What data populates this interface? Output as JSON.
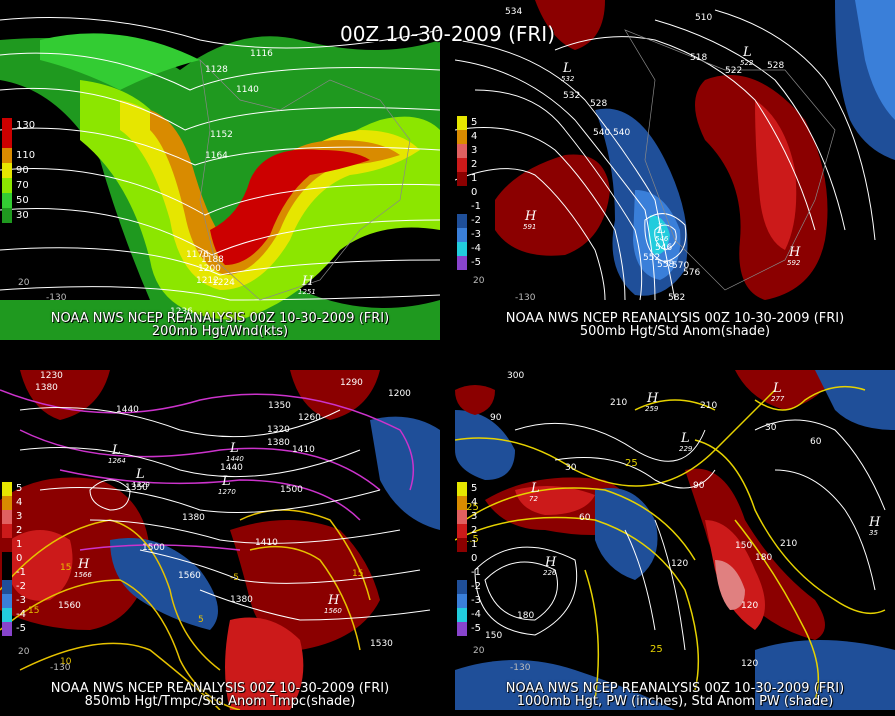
{
  "main_title": "00Z 10-30-2009 (FRI)",
  "panels": [
    {
      "line1": "NOAA NWS NCEP REANALYSIS 00Z 10-30-2009 (FRI)",
      "line2": "200mb Hgt/Wnd(kts)",
      "legend": [
        {
          "label": "130",
          "color": "#cc0000"
        },
        {
          "label": "110",
          "color": "#d98b00"
        },
        {
          "label": "90",
          "color": "#e6e600"
        },
        {
          "label": "70",
          "color": "#8ce600"
        },
        {
          "label": "50",
          "color": "#33cc33"
        },
        {
          "label": "30",
          "color": "#1f991f"
        }
      ],
      "contours": [
        "1116",
        "1128",
        "1140",
        "1152",
        "1164",
        "1176",
        "1188",
        "1200",
        "1212",
        "1224",
        "1236"
      ],
      "highs": [
        {
          "value": "1251"
        }
      ],
      "lons": [
        "-130",
        "20"
      ]
    },
    {
      "line1": "NOAA NWS NCEP REANALYSIS 00Z 10-30-2009 (FRI)",
      "line2": "500mb Hgt/Std Anom(shade)",
      "legend": [
        {
          "label": "5",
          "color": "#e6e600"
        },
        {
          "label": "4",
          "color": "#d98b00"
        },
        {
          "label": "3",
          "color": "#e06060"
        },
        {
          "label": "2",
          "color": "#cc1a1a"
        },
        {
          "label": "1",
          "color": "#8b0000"
        },
        {
          "label": "0",
          "color": "#000000"
        },
        {
          "label": "-1",
          "color": "#000000"
        },
        {
          "label": "-2",
          "color": "#1f4f99"
        },
        {
          "label": "-3",
          "color": "#3a7fd9"
        },
        {
          "label": "-4",
          "color": "#22ccdd"
        },
        {
          "label": "-5",
          "color": "#8844cc"
        }
      ],
      "contours": [
        "534",
        "510",
        "518",
        "522",
        "528",
        "532",
        "528",
        "540",
        "540",
        "552",
        "546",
        "558",
        "570",
        "576",
        "582"
      ],
      "lows": [
        {
          "value": "532"
        },
        {
          "value": "522"
        },
        {
          "value": "546"
        }
      ],
      "highs": [
        {
          "value": "591"
        },
        {
          "value": "592"
        }
      ],
      "lons": [
        "-130",
        "20"
      ]
    },
    {
      "line1": "NOAA NWS NCEP REANALYSIS 00Z 10-30-2009 (FRI)",
      "line2": "850mb Hgt/Tmpc/Std Anom Tmpc(shade)",
      "legend": [
        {
          "label": "5",
          "color": "#e6e600"
        },
        {
          "label": "4",
          "color": "#d98b00"
        },
        {
          "label": "3",
          "color": "#e06060"
        },
        {
          "label": "2",
          "color": "#cc1a1a"
        },
        {
          "label": "1",
          "color": "#8b0000"
        },
        {
          "label": "0",
          "color": "#000000"
        },
        {
          "label": "-1",
          "color": "#000000"
        },
        {
          "label": "-2",
          "color": "#1f4f99"
        },
        {
          "label": "-3",
          "color": "#3a7fd9"
        },
        {
          "label": "-4",
          "color": "#22ccdd"
        },
        {
          "label": "-5",
          "color": "#8844cc"
        }
      ],
      "contours": [
        "1230",
        "1380",
        "1440",
        "1350",
        "1260",
        "1320",
        "1380",
        "1410",
        "1200",
        "1290",
        "1350",
        "1440",
        "1500",
        "1380",
        "1500",
        "1410",
        "1560",
        "1530",
        "1560",
        "1380"
      ],
      "temps": [
        "15",
        "10",
        "5",
        "15",
        "-5",
        "15"
      ],
      "lows": [
        {
          "value": "1264"
        },
        {
          "value": "1270"
        },
        {
          "value": "1440"
        },
        {
          "value": "1329"
        }
      ],
      "highs": [
        {
          "value": "1566"
        },
        {
          "value": "1560"
        }
      ],
      "lons": [
        "-130",
        "20"
      ]
    },
    {
      "line1": "NOAA NWS NCEP REANALYSIS 00Z 10-30-2009 (FRI)",
      "line2": "1000mb Hgt, PW (inches), Std Anom PW (shade)",
      "legend": [
        {
          "label": "5",
          "color": "#e6e600"
        },
        {
          "label": "4",
          "color": "#d98b00"
        },
        {
          "label": "3",
          "color": "#e06060"
        },
        {
          "label": "2",
          "color": "#cc1a1a"
        },
        {
          "label": "1",
          "color": "#8b0000"
        },
        {
          "label": "0",
          "color": "#000000"
        },
        {
          "label": "-1",
          "color": "#000000"
        },
        {
          "label": "-2",
          "color": "#1f4f99"
        },
        {
          "label": "-3",
          "color": "#3a7fd9"
        },
        {
          "label": "-4",
          "color": "#22ccdd"
        },
        {
          "label": "-5",
          "color": "#8844cc"
        }
      ],
      "contours": [
        "300",
        "90",
        "210",
        "30",
        "60",
        "90",
        "150",
        "180",
        "210",
        "120",
        "180",
        "150",
        "120",
        "210",
        "60",
        "30",
        "1.5",
        "25",
        ".25",
        "25",
        "120"
      ],
      "lows": [
        {
          "value": "229"
        },
        {
          "value": "72"
        },
        {
          "value": "277"
        }
      ],
      "highs": [
        {
          "value": "226"
        },
        {
          "value": "259"
        },
        {
          "value": "35"
        }
      ],
      "lons": [
        "-130",
        "20"
      ]
    }
  ]
}
